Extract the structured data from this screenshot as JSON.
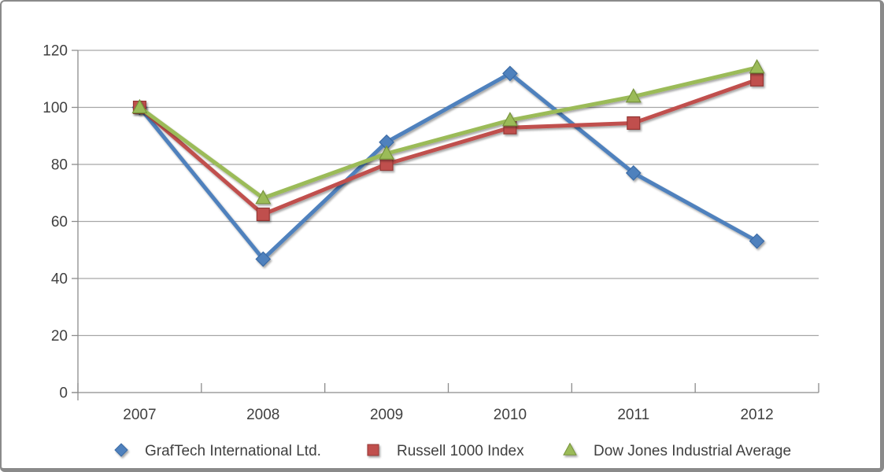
{
  "chart_data": {
    "type": "line",
    "title": "",
    "xlabel": "",
    "ylabel": "",
    "categories": [
      "2007",
      "2008",
      "2009",
      "2010",
      "2011",
      "2012"
    ],
    "series": [
      {
        "name": "GrafTech International Ltd.",
        "color": "#4F81BD",
        "border_color": "#3A6BA5",
        "marker": "diamond",
        "values": [
          100,
          46.8,
          87.8,
          111.9,
          77.0,
          53.1
        ]
      },
      {
        "name": "Russell 1000 Index",
        "color": "#C0504D",
        "border_color": "#953735",
        "marker": "square",
        "values": [
          100,
          62.5,
          80.1,
          92.9,
          94.5,
          109.7
        ]
      },
      {
        "name": "Dow Jones Industrial Average",
        "color": "#9BBB59",
        "border_color": "#77933C",
        "marker": "triangle",
        "values": [
          100,
          68.2,
          83.8,
          95.5,
          103.8,
          114.0
        ]
      }
    ],
    "ylim": [
      0,
      120
    ],
    "ytick_interval": 20,
    "yticks": [
      0,
      20,
      40,
      60,
      80,
      100,
      120
    ],
    "grid": true,
    "legend_position": "bottom",
    "gridline_color": "#A6A6A6",
    "axis_color": "#8C8C8C",
    "text_color": "#404040",
    "frame_border_color": "#8A8A8A",
    "background_color": "#FFFFFF"
  }
}
